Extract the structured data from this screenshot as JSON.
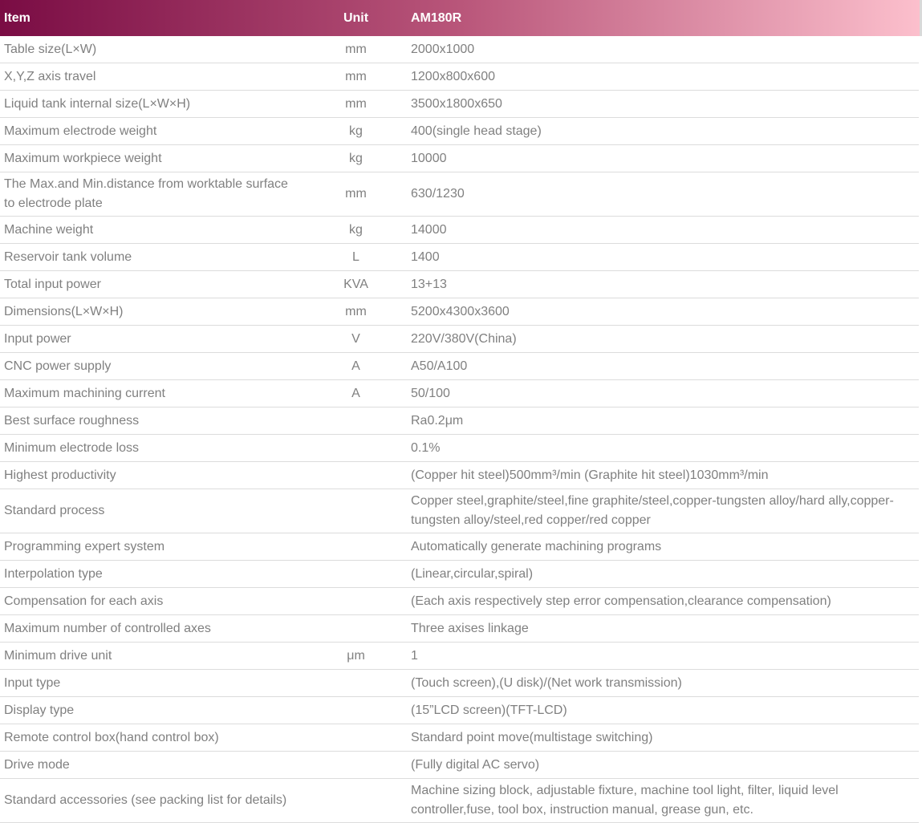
{
  "colors": {
    "header_gradient_start": "#7a0c44",
    "header_gradient_mid": "#b9567a",
    "header_gradient_end": "#fcc0cd",
    "header_text": "#ffffff",
    "body_text": "#808080",
    "row_border": "#dcdcdc"
  },
  "table": {
    "columns": [
      "Item",
      "Unit",
      "AM180R"
    ],
    "rows": [
      {
        "item": "Table size(L×W)",
        "unit": "mm",
        "value": "2000x1000"
      },
      {
        "item": "X,Y,Z axis travel",
        "unit": "mm",
        "value": "1200x800x600"
      },
      {
        "item": "Liquid tank internal size(L×W×H)",
        "unit": "mm",
        "value": "3500x1800x650"
      },
      {
        "item": "Maximum electrode weight",
        "unit": "kg",
        "value": "400(single head stage)"
      },
      {
        "item": "Maximum workpiece weight",
        "unit": "kg",
        "value": "10000"
      },
      {
        "item": "The Max.and Min.distance from worktable surface to electrode plate",
        "unit": "mm",
        "value": "630/1230"
      },
      {
        "item": "Machine weight",
        "unit": "kg",
        "value": "14000"
      },
      {
        "item": "Reservoir tank volume",
        "unit": "L",
        "value": "1400"
      },
      {
        "item": "Total input power",
        "unit": "KVA",
        "value": "13+13"
      },
      {
        "item": "Dimensions(L×W×H)",
        "unit": "mm",
        "value": "5200x4300x3600"
      },
      {
        "item": "Input power",
        "unit": "V",
        "value": "220V/380V(China)"
      },
      {
        "item": "CNC power supply",
        "unit": "A",
        "value": "A50/A100"
      },
      {
        "item": "Maximum machining current",
        "unit": "A",
        "value": "50/100"
      },
      {
        "item": "Best surface roughness",
        "unit": "",
        "value": "Ra0.2μm"
      },
      {
        "item": "Minimum electrode loss",
        "unit": "",
        "value": "0.1%"
      },
      {
        "item": "Highest productivity",
        "unit": "",
        "value": "(Copper hit steel)500mm³/min (Graphite hit steel)1030mm³/min"
      },
      {
        "item": "Standard process",
        "unit": "",
        "value": "Copper steel,graphite/steel,fine graphite/steel,copper-tungsten alloy/hard ally,copper-tungsten alloy/steel,red copper/red copper"
      },
      {
        "item": "Programming expert system",
        "unit": "",
        "value": "Automatically generate machining programs"
      },
      {
        "item": "Interpolation type",
        "unit": "",
        "value": "(Linear,circular,spiral)"
      },
      {
        "item": "Compensation for each axis",
        "unit": "",
        "value": "(Each axis respectively step error compensation,clearance compensation)"
      },
      {
        "item": "Maximum number of controlled axes",
        "unit": "",
        "value": "Three axises linkage"
      },
      {
        "item": "Minimum drive unit",
        "unit": "μm",
        "value": "1"
      },
      {
        "item": "Input type",
        "unit": "",
        "value": "(Touch screen),(U disk)/(Net work transmission)"
      },
      {
        "item": "Display type",
        "unit": "",
        "value": "(15”LCD screen)(TFT-LCD)"
      },
      {
        "item": "Remote control box(hand control box)",
        "unit": "",
        "value": "Standard point move(multistage switching)"
      },
      {
        "item": "Drive mode",
        "unit": "",
        "value": "(Fully digital AC servo)"
      },
      {
        "item": "Standard accessories (see packing list for details)",
        "unit": "",
        "value": "Machine sizing block, adjustable fixture, machine tool light, filter, liquid level controller,fuse, tool box, instruction manual, grease gun, etc."
      }
    ]
  }
}
